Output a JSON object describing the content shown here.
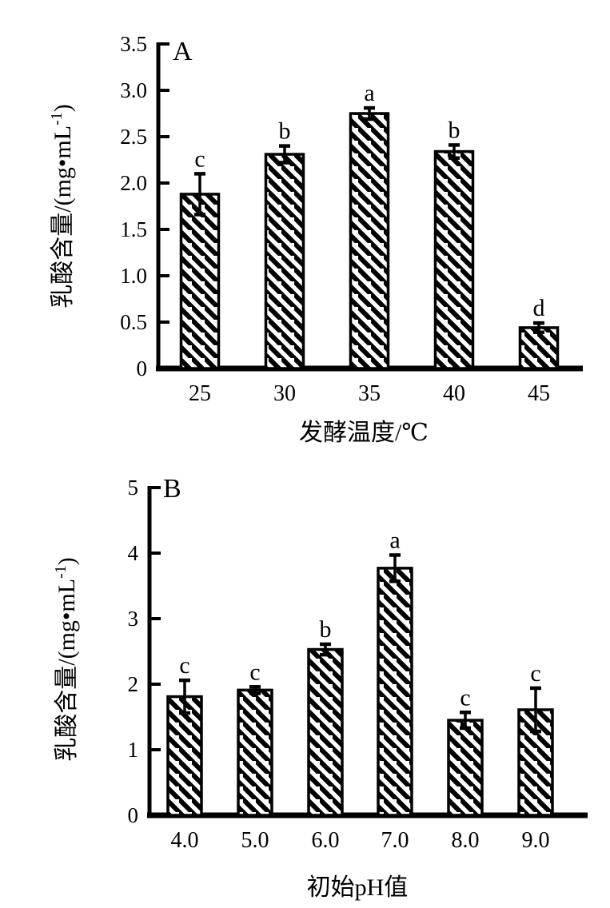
{
  "page": {
    "background_color": "#ffffff",
    "ink_color": "#000000",
    "description_bar_fill": "white with black diagonal hatch"
  },
  "chart_data": [
    {
      "type": "bar",
      "panel_label": "A",
      "title": "",
      "xlabel": "发酵温度/℃",
      "ylabel_main": "乳酸含量/(mg•mL",
      "ylabel_sup": "-1",
      "ylabel_end": ")",
      "categories": [
        "25",
        "30",
        "35",
        "40",
        "45"
      ],
      "values": [
        1.88,
        2.31,
        2.75,
        2.34,
        0.44
      ],
      "errors": [
        0.22,
        0.09,
        0.06,
        0.07,
        0.05
      ],
      "sig_letters": [
        "c",
        "b",
        "a",
        "b",
        "d"
      ],
      "yticks": [
        "0",
        "0.5",
        "1.0",
        "1.5",
        "2.0",
        "2.5",
        "3.0",
        "3.5"
      ],
      "ytick_values": [
        0,
        0.5,
        1.0,
        1.5,
        2.0,
        2.5,
        3.0,
        3.5
      ],
      "ylim": [
        0,
        3.5
      ],
      "grid": false,
      "legend": "none",
      "bar_style": "diagonal-hatch",
      "error_bars": "symmetric with caps"
    },
    {
      "type": "bar",
      "panel_label": "B",
      "title": "",
      "xlabel": "初始pH值",
      "ylabel_main": "乳酸含量/(mg•mL",
      "ylabel_sup": "-1",
      "ylabel_end": ")",
      "categories": [
        "4.0",
        "5.0",
        "6.0",
        "7.0",
        "8.0",
        "9.0"
      ],
      "values": [
        1.81,
        1.91,
        2.53,
        3.77,
        1.45,
        1.61
      ],
      "errors": [
        0.25,
        0.05,
        0.08,
        0.2,
        0.12,
        0.33
      ],
      "sig_letters": [
        "c",
        "c",
        "b",
        "a",
        "c",
        "c"
      ],
      "yticks": [
        "0",
        "1",
        "2",
        "3",
        "4",
        "5"
      ],
      "ytick_values": [
        0,
        1,
        2,
        3,
        4,
        5
      ],
      "ylim": [
        0,
        5
      ],
      "grid": false,
      "legend": "none",
      "bar_style": "diagonal-hatch",
      "error_bars": "symmetric with caps"
    }
  ]
}
